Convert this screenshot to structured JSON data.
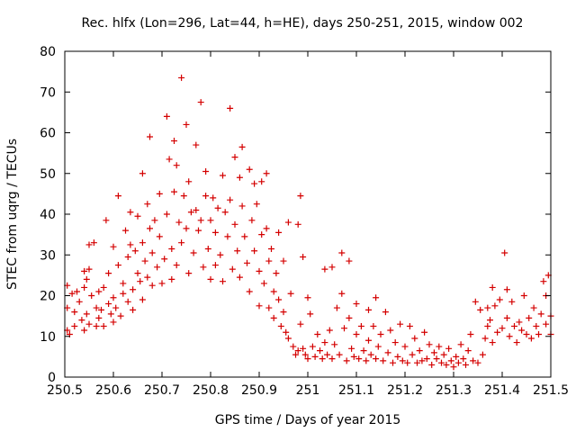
{
  "chart_data": {
    "type": "scatter",
    "title": "Rec. hlfx (Lon=296, Lat=44, h=HE), days 250-251, 2015, window 002",
    "xlabel": "GPS time / Days of year 2015",
    "ylabel": "STEC from uqrg / TECUs",
    "xlim": [
      250.5,
      251.5
    ],
    "ylim": [
      0,
      80
    ],
    "xticks": [
      "250.5",
      "250.6",
      "250.7",
      "250.8",
      "250.9",
      "251",
      "251.1",
      "251.2",
      "251.3",
      "251.4",
      "251.5"
    ],
    "yticks": [
      "0",
      "10",
      "20",
      "30",
      "40",
      "50",
      "60",
      "70",
      "80"
    ],
    "grid": false,
    "marker": "+",
    "color": "#d40000",
    "points": [
      [
        250.505,
        22.5
      ],
      [
        250.505,
        17.0
      ],
      [
        250.505,
        11.5
      ],
      [
        250.51,
        10.5
      ],
      [
        250.515,
        20.5
      ],
      [
        250.52,
        16.0
      ],
      [
        250.52,
        12.5
      ],
      [
        250.525,
        21.0
      ],
      [
        250.53,
        18.5
      ],
      [
        250.535,
        14.0
      ],
      [
        250.54,
        26.0
      ],
      [
        250.54,
        22.0
      ],
      [
        250.54,
        11.5
      ],
      [
        250.545,
        24.0
      ],
      [
        250.545,
        15.5
      ],
      [
        250.55,
        32.5
      ],
      [
        250.55,
        26.5
      ],
      [
        250.55,
        13.0
      ],
      [
        250.555,
        20.0
      ],
      [
        250.56,
        33.0
      ],
      [
        250.565,
        17.0
      ],
      [
        250.565,
        12.5
      ],
      [
        250.57,
        21.0
      ],
      [
        250.57,
        14.5
      ],
      [
        250.575,
        16.5
      ],
      [
        250.58,
        12.5
      ],
      [
        250.58,
        22.0
      ],
      [
        250.585,
        38.5
      ],
      [
        250.59,
        25.5
      ],
      [
        250.59,
        18.0
      ],
      [
        250.595,
        15.5
      ],
      [
        250.6,
        32.0
      ],
      [
        250.6,
        19.5
      ],
      [
        250.6,
        13.5
      ],
      [
        250.605,
        17.0
      ],
      [
        250.61,
        44.5
      ],
      [
        250.61,
        27.5
      ],
      [
        250.615,
        15.0
      ],
      [
        250.62,
        23.0
      ],
      [
        250.62,
        20.5
      ],
      [
        250.625,
        36.0
      ],
      [
        250.63,
        29.5
      ],
      [
        250.63,
        18.5
      ],
      [
        250.635,
        40.5
      ],
      [
        250.635,
        32.5
      ],
      [
        250.64,
        21.5
      ],
      [
        250.64,
        16.5
      ],
      [
        250.645,
        31.0
      ],
      [
        250.65,
        39.5
      ],
      [
        250.65,
        25.5
      ],
      [
        250.655,
        23.5
      ],
      [
        250.66,
        50.0
      ],
      [
        250.66,
        33.0
      ],
      [
        250.66,
        19.0
      ],
      [
        250.665,
        28.5
      ],
      [
        250.67,
        42.5
      ],
      [
        250.67,
        24.5
      ],
      [
        250.675,
        59.0
      ],
      [
        250.675,
        36.5
      ],
      [
        250.68,
        30.5
      ],
      [
        250.68,
        22.5
      ],
      [
        250.685,
        38.5
      ],
      [
        250.69,
        27.0
      ],
      [
        250.695,
        45.0
      ],
      [
        250.695,
        34.5
      ],
      [
        250.7,
        23.0
      ],
      [
        250.705,
        29.0
      ],
      [
        250.71,
        64.0
      ],
      [
        250.71,
        40.0
      ],
      [
        250.715,
        53.5
      ],
      [
        250.72,
        31.5
      ],
      [
        250.72,
        24.0
      ],
      [
        250.725,
        58.0
      ],
      [
        250.725,
        45.5
      ],
      [
        250.73,
        27.5
      ],
      [
        250.73,
        52.0
      ],
      [
        250.735,
        38.0
      ],
      [
        250.74,
        73.5
      ],
      [
        250.74,
        33.0
      ],
      [
        250.745,
        44.5
      ],
      [
        250.75,
        62.0
      ],
      [
        250.75,
        36.5
      ],
      [
        250.755,
        48.0
      ],
      [
        250.755,
        25.5
      ],
      [
        250.76,
        40.5
      ],
      [
        250.765,
        30.5
      ],
      [
        250.77,
        57.0
      ],
      [
        250.77,
        41.0
      ],
      [
        250.775,
        36.0
      ],
      [
        250.78,
        67.5
      ],
      [
        250.78,
        38.5
      ],
      [
        250.785,
        27.0
      ],
      [
        250.79,
        50.5
      ],
      [
        250.79,
        44.5
      ],
      [
        250.795,
        31.5
      ],
      [
        250.8,
        38.5
      ],
      [
        250.8,
        24.0
      ],
      [
        250.805,
        44.0
      ],
      [
        250.81,
        35.5
      ],
      [
        250.81,
        27.5
      ],
      [
        250.815,
        41.5
      ],
      [
        250.82,
        30.0
      ],
      [
        250.825,
        49.5
      ],
      [
        250.825,
        23.5
      ],
      [
        250.83,
        40.5
      ],
      [
        250.835,
        34.5
      ],
      [
        250.84,
        66.0
      ],
      [
        250.84,
        43.5
      ],
      [
        250.845,
        26.5
      ],
      [
        250.85,
        54.0
      ],
      [
        250.85,
        37.5
      ],
      [
        250.855,
        31.0
      ],
      [
        250.86,
        49.0
      ],
      [
        250.86,
        24.5
      ],
      [
        250.865,
        56.5
      ],
      [
        250.865,
        42.0
      ],
      [
        250.87,
        34.5
      ],
      [
        250.875,
        28.0
      ],
      [
        250.88,
        51.0
      ],
      [
        250.88,
        21.0
      ],
      [
        250.885,
        38.5
      ],
      [
        250.89,
        47.5
      ],
      [
        250.89,
        31.0
      ],
      [
        250.895,
        42.5
      ],
      [
        250.9,
        26.0
      ],
      [
        250.9,
        17.5
      ],
      [
        250.905,
        48.0
      ],
      [
        250.905,
        35.0
      ],
      [
        250.91,
        23.0
      ],
      [
        250.915,
        50.0
      ],
      [
        250.915,
        36.5
      ],
      [
        250.92,
        28.5
      ],
      [
        250.92,
        17.0
      ],
      [
        250.925,
        31.5
      ],
      [
        250.93,
        21.0
      ],
      [
        250.93,
        14.5
      ],
      [
        250.935,
        25.5
      ],
      [
        250.94,
        35.5
      ],
      [
        250.94,
        19.0
      ],
      [
        250.945,
        12.5
      ],
      [
        250.95,
        28.5
      ],
      [
        250.95,
        16.0
      ],
      [
        250.955,
        11.0
      ],
      [
        250.96,
        38.0
      ],
      [
        250.96,
        9.5
      ],
      [
        250.965,
        20.5
      ],
      [
        250.97,
        7.5
      ],
      [
        250.975,
        5.5
      ],
      [
        250.98,
        37.5
      ],
      [
        250.98,
        6.5
      ],
      [
        250.985,
        44.5
      ],
      [
        250.985,
        13.0
      ],
      [
        250.99,
        29.5
      ],
      [
        250.99,
        7.0
      ],
      [
        250.995,
        5.5
      ],
      [
        251.0,
        19.5
      ],
      [
        251.0,
        4.5
      ],
      [
        251.005,
        15.5
      ],
      [
        251.01,
        7.5
      ],
      [
        251.015,
        5.0
      ],
      [
        251.02,
        10.5
      ],
      [
        251.025,
        6.5
      ],
      [
        251.03,
        4.5
      ],
      [
        251.035,
        26.5
      ],
      [
        251.035,
        8.5
      ],
      [
        251.04,
        5.5
      ],
      [
        251.045,
        11.5
      ],
      [
        251.05,
        27.0
      ],
      [
        251.05,
        4.5
      ],
      [
        251.055,
        8.0
      ],
      [
        251.06,
        17.0
      ],
      [
        251.065,
        5.5
      ],
      [
        251.07,
        30.5
      ],
      [
        251.07,
        20.5
      ],
      [
        251.075,
        12.0
      ],
      [
        251.08,
        4.0
      ],
      [
        251.085,
        28.5
      ],
      [
        251.085,
        14.5
      ],
      [
        251.09,
        7.0
      ],
      [
        251.095,
        5.0
      ],
      [
        251.1,
        18.0
      ],
      [
        251.1,
        10.5
      ],
      [
        251.105,
        4.5
      ],
      [
        251.11,
        12.5
      ],
      [
        251.115,
        6.5
      ],
      [
        251.12,
        4.0
      ],
      [
        251.125,
        16.5
      ],
      [
        251.125,
        9.0
      ],
      [
        251.13,
        5.5
      ],
      [
        251.135,
        12.5
      ],
      [
        251.14,
        19.5
      ],
      [
        251.14,
        4.5
      ],
      [
        251.145,
        7.5
      ],
      [
        251.15,
        10.5
      ],
      [
        251.155,
        4.0
      ],
      [
        251.16,
        16.0
      ],
      [
        251.165,
        6.0
      ],
      [
        251.17,
        11.5
      ],
      [
        251.175,
        3.5
      ],
      [
        251.18,
        8.5
      ],
      [
        251.185,
        5.0
      ],
      [
        251.19,
        13.0
      ],
      [
        251.195,
        4.0
      ],
      [
        251.2,
        7.5
      ],
      [
        251.205,
        3.5
      ],
      [
        251.21,
        12.5
      ],
      [
        251.215,
        5.5
      ],
      [
        251.22,
        9.5
      ],
      [
        251.225,
        3.5
      ],
      [
        251.23,
        6.5
      ],
      [
        251.235,
        4.0
      ],
      [
        251.24,
        11.0
      ],
      [
        251.245,
        4.5
      ],
      [
        251.25,
        8.0
      ],
      [
        251.255,
        3.0
      ],
      [
        251.26,
        6.0
      ],
      [
        251.265,
        4.5
      ],
      [
        251.27,
        7.5
      ],
      [
        251.275,
        3.5
      ],
      [
        251.28,
        5.5
      ],
      [
        251.285,
        3.0
      ],
      [
        251.29,
        7.0
      ],
      [
        251.295,
        4.0
      ],
      [
        251.3,
        2.5
      ],
      [
        251.305,
        5.0
      ],
      [
        251.31,
        3.5
      ],
      [
        251.315,
        8.0
      ],
      [
        251.32,
        4.5
      ],
      [
        251.325,
        3.0
      ],
      [
        251.33,
        6.5
      ],
      [
        251.335,
        10.5
      ],
      [
        251.34,
        4.0
      ],
      [
        251.345,
        18.5
      ],
      [
        251.35,
        3.5
      ],
      [
        251.355,
        16.5
      ],
      [
        251.36,
        5.5
      ],
      [
        251.365,
        9.5
      ],
      [
        251.37,
        17.0
      ],
      [
        251.37,
        12.5
      ],
      [
        251.375,
        14.0
      ],
      [
        251.38,
        22.0
      ],
      [
        251.38,
        8.5
      ],
      [
        251.385,
        17.5
      ],
      [
        251.39,
        11.0
      ],
      [
        251.395,
        19.0
      ],
      [
        251.4,
        12.0
      ],
      [
        251.405,
        30.5
      ],
      [
        251.41,
        21.5
      ],
      [
        251.41,
        14.5
      ],
      [
        251.415,
        10.0
      ],
      [
        251.42,
        18.5
      ],
      [
        251.425,
        12.5
      ],
      [
        251.43,
        8.5
      ],
      [
        251.435,
        13.5
      ],
      [
        251.44,
        11.5
      ],
      [
        251.445,
        20.0
      ],
      [
        251.45,
        10.5
      ],
      [
        251.455,
        14.5
      ],
      [
        251.46,
        9.5
      ],
      [
        251.465,
        17.0
      ],
      [
        251.47,
        12.5
      ],
      [
        251.475,
        10.5
      ],
      [
        251.48,
        15.5
      ],
      [
        251.485,
        23.5
      ],
      [
        251.49,
        20.0
      ],
      [
        251.49,
        13.0
      ],
      [
        251.495,
        25.0
      ],
      [
        251.5,
        15.0
      ],
      [
        251.5,
        10.5
      ]
    ]
  }
}
